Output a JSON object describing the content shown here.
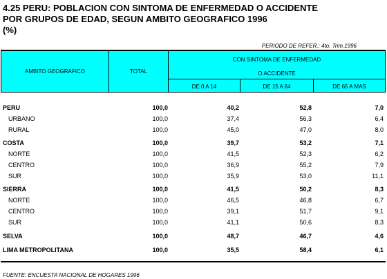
{
  "title": {
    "line1": "4.25  PERU:  POBLACION CON SINTOMA DE ENFERMEDAD O ACCIDENTE",
    "line2": "POR GRUPOS DE EDAD, SEGUN AMBITO GEOGRAFICO 1996",
    "line3": "(%)"
  },
  "period": "PERIODO DE REFER.: 4to. Trim.1996",
  "header": {
    "col_ambito": "AMBITO GEOGRAFICO",
    "col_total": "TOTAL",
    "group_line1": "CON SINTOMA DE ENFERMEDAD",
    "group_line2": "O ACCIDENTE",
    "sub": [
      "DE 0 A 14",
      "DE 15 A 64",
      "DE 65 A MAS"
    ]
  },
  "rows": [
    {
      "label": "PERU",
      "total": "100,0",
      "a": "40,2",
      "b": "52,8",
      "c": "7,0"
    },
    {
      "label": "URBANO",
      "total": "100,0",
      "a": "37,4",
      "b": "56,3",
      "c": "6,4"
    },
    {
      "label": "RURAL",
      "total": "100,0",
      "a": "45,0",
      "b": "47,0",
      "c": "8,0"
    },
    {
      "label": "COSTA",
      "total": "100,0",
      "a": "39,7",
      "b": "53,2",
      "c": "7,1"
    },
    {
      "label": "NORTE",
      "total": "100,0",
      "a": "41,5",
      "b": "52,3",
      "c": "6,2"
    },
    {
      "label": "CENTRO",
      "total": "100,0",
      "a": "36,9",
      "b": "55,2",
      "c": "7,9"
    },
    {
      "label": "SUR",
      "total": "100,0",
      "a": "35,9",
      "b": "53,0",
      "c": "11,1"
    },
    {
      "label": "SIERRA",
      "total": "100,0",
      "a": "41,5",
      "b": "50,2",
      "c": "8,3"
    },
    {
      "label": "NORTE",
      "total": "100,0",
      "a": "46,5",
      "b": "46,8",
      "c": "6,7"
    },
    {
      "label": "CENTRO",
      "total": "100,0",
      "a": "39,1",
      "b": "51,7",
      "c": "9,1"
    },
    {
      "label": "SUR",
      "total": "100,0",
      "a": "41,1",
      "b": "50,6",
      "c": "8,3"
    },
    {
      "label": "SELVA",
      "total": "100,0",
      "a": "48,7",
      "b": "46,7",
      "c": "4,6"
    },
    {
      "label": "LIMA METROPOLITANA",
      "total": "100,0",
      "a": "35,5",
      "b": "58,4",
      "c": "6,1"
    }
  ],
  "source": "FUENTE: ENCUESTA NACIONAL DE HOGARES 1996"
}
